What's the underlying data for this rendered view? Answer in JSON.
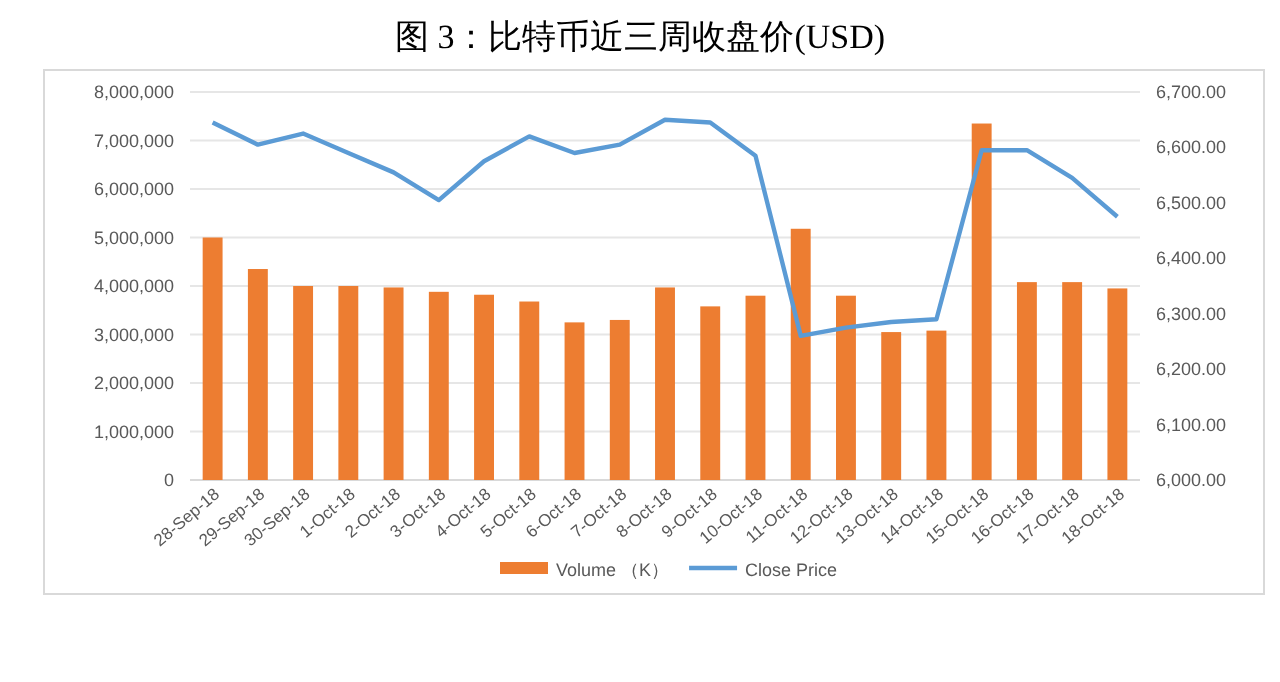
{
  "chart_data": {
    "type": "bar",
    "title": "图 3：比特币近三周收盘价(USD)",
    "categories": [
      "28-Sep-18",
      "29-Sep-18",
      "30-Sep-18",
      "1-Oct-18",
      "2-Oct-18",
      "3-Oct-18",
      "4-Oct-18",
      "5-Oct-18",
      "6-Oct-18",
      "7-Oct-18",
      "8-Oct-18",
      "9-Oct-18",
      "10-Oct-18",
      "11-Oct-18",
      "12-Oct-18",
      "13-Oct-18",
      "14-Oct-18",
      "15-Oct-18",
      "16-Oct-18",
      "17-Oct-18",
      "18-Oct-18"
    ],
    "series": [
      {
        "name": "Volume （K）",
        "color": "#ed7d31",
        "values": [
          5000000,
          4350000,
          4000000,
          4000000,
          3970000,
          3880000,
          3820000,
          3680000,
          3250000,
          3300000,
          3970000,
          3580000,
          3800000,
          5180000,
          3800000,
          3050000,
          3080000,
          7350000,
          4080000,
          4080000,
          3950000
        ]
      },
      {
        "name": "Close Price",
        "type": "line",
        "axis": "y2",
        "color": "#5b9bd5",
        "values": [
          6645,
          6605,
          6625,
          6590,
          6555,
          6505,
          6575,
          6620,
          6590,
          6605,
          6650,
          6645,
          6585,
          6260,
          6275,
          6285,
          6290,
          6595,
          6595,
          6545,
          6475
        ]
      }
    ],
    "ylim": [
      0,
      8000000
    ],
    "yticks": [
      {
        "value": 0,
        "label": "0"
      },
      {
        "value": 1000000,
        "label": "1,000,000"
      },
      {
        "value": 2000000,
        "label": "2,000,000"
      },
      {
        "value": 3000000,
        "label": "3,000,000"
      },
      {
        "value": 4000000,
        "label": "4,000,000"
      },
      {
        "value": 5000000,
        "label": "5,000,000"
      },
      {
        "value": 6000000,
        "label": "6,000,000"
      },
      {
        "value": 7000000,
        "label": "7,000,000"
      },
      {
        "value": 8000000,
        "label": "8,000,000"
      }
    ],
    "y2lim": [
      6000,
      6700
    ],
    "y2ticks": [
      {
        "value": 6000,
        "label": "6,000.00"
      },
      {
        "value": 6100,
        "label": "6,100.00"
      },
      {
        "value": 6200,
        "label": "6,200.00"
      },
      {
        "value": 6300,
        "label": "6,300.00"
      },
      {
        "value": 6400,
        "label": "6,400.00"
      },
      {
        "value": 6500,
        "label": "6,500.00"
      },
      {
        "value": 6600,
        "label": "6,600.00"
      },
      {
        "value": 6700,
        "label": "6,700.00"
      }
    ],
    "grid": "y",
    "legend": "bottom"
  }
}
